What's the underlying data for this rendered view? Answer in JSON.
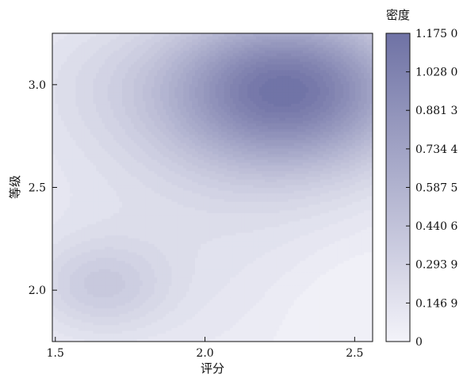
{
  "chart_data": {
    "type": "heatmap",
    "subtype": "kernel-density-contour",
    "title": "",
    "xlabel": "评分",
    "ylabel": "等级",
    "xlim": [
      1.49,
      2.56
    ],
    "ylim": [
      1.75,
      3.25
    ],
    "x_ticks": [
      1.5,
      2.0,
      2.5
    ],
    "x_tick_labels": [
      "1.5",
      "2.0",
      "2.5"
    ],
    "y_ticks": [
      2.0,
      2.5,
      3.0
    ],
    "y_tick_labels": [
      "2.0",
      "2.5",
      "3.0"
    ],
    "grid": false,
    "colormap": {
      "low": "#f3f3f9",
      "high": "#6f72a5"
    },
    "colorbar": {
      "title": "密度",
      "min": 0,
      "max": 1.175,
      "ticks": [
        0,
        0.1469,
        0.2939,
        0.4406,
        0.5875,
        0.7344,
        0.8813,
        1.028,
        1.175
      ],
      "tick_labels": [
        "0",
        "0.146 9",
        "0.293 9",
        "0.440 6",
        "0.587 5",
        "0.734 4",
        "0.881 3",
        "1.028 0",
        "1.175 0"
      ]
    },
    "density_peaks": [
      {
        "x": 2.27,
        "y": 2.98,
        "density": 1.1
      },
      {
        "x": 1.65,
        "y": 2.02,
        "density": 0.32
      }
    ]
  }
}
